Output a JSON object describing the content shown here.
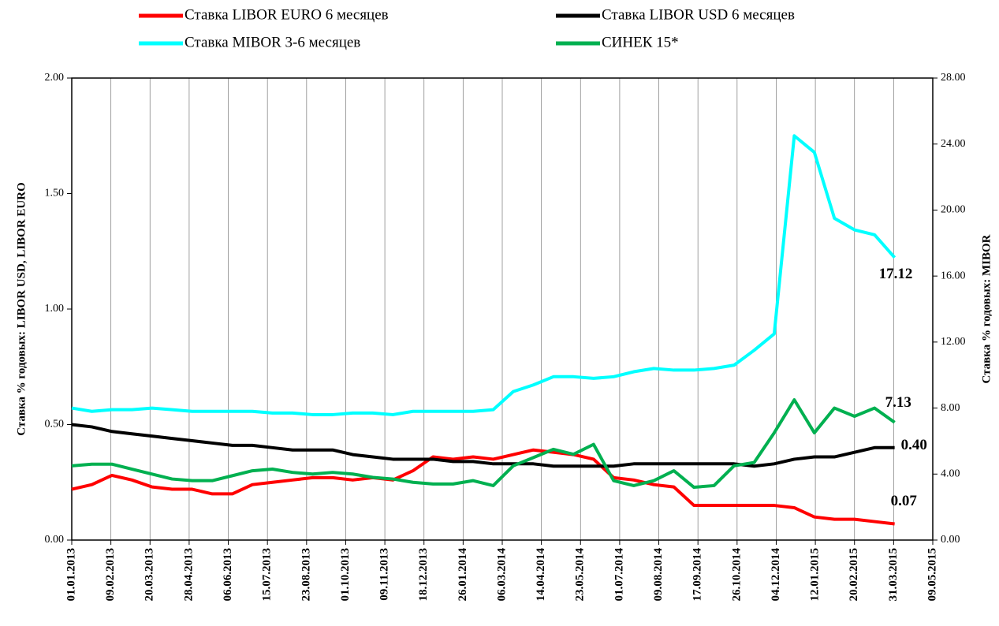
{
  "chart_data": {
    "type": "line",
    "ylabel": "Ставка % годовых: LIBOR USD, LIBOR EURO",
    "y2label": "Ставка % годовых: MIBOR",
    "x": [
      "2013-01-01",
      "2013-01-21",
      "2013-02-10",
      "2013-03-02",
      "2013-03-22",
      "2013-04-11",
      "2013-05-01",
      "2013-05-21",
      "2013-06-10",
      "2013-06-30",
      "2013-07-20",
      "2013-08-09",
      "2013-08-29",
      "2013-09-18",
      "2013-10-08",
      "2013-10-28",
      "2013-11-17",
      "2013-12-07",
      "2013-12-27",
      "2014-01-16",
      "2014-02-05",
      "2014-02-25",
      "2014-03-17",
      "2014-04-06",
      "2014-04-26",
      "2014-05-16",
      "2014-06-05",
      "2014-06-25",
      "2014-07-15",
      "2014-08-04",
      "2014-08-24",
      "2014-09-13",
      "2014-10-03",
      "2014-10-23",
      "2014-11-12",
      "2014-12-02",
      "2014-12-22",
      "2015-01-11",
      "2015-01-31",
      "2015-02-20",
      "2015-03-12",
      "2015-04-01"
    ],
    "xlim": [
      "2013-01-01",
      "2015-05-09"
    ],
    "xticks": [
      {
        "value": "2013-01-01",
        "label": "01.01.2013"
      },
      {
        "value": "2013-02-09",
        "label": "09.02.2013"
      },
      {
        "value": "2013-03-20",
        "label": "20.03.2013"
      },
      {
        "value": "2013-04-28",
        "label": "28.04.2013"
      },
      {
        "value": "2013-06-06",
        "label": "06.06.2013"
      },
      {
        "value": "2013-07-15",
        "label": "15.07.2013"
      },
      {
        "value": "2013-08-23",
        "label": "23.08.2013"
      },
      {
        "value": "2013-10-01",
        "label": "01.10.2013"
      },
      {
        "value": "2013-11-09",
        "label": "09.11.2013"
      },
      {
        "value": "2013-12-18",
        "label": "18.12.2013"
      },
      {
        "value": "2014-01-26",
        "label": "26.01.2014"
      },
      {
        "value": "2014-03-06",
        "label": "06.03.2014"
      },
      {
        "value": "2014-04-14",
        "label": "14.04.2014"
      },
      {
        "value": "2014-05-23",
        "label": "23.05.2014"
      },
      {
        "value": "2014-07-01",
        "label": "01.07.2014"
      },
      {
        "value": "2014-08-09",
        "label": "09.08.2014"
      },
      {
        "value": "2014-09-17",
        "label": "17.09.2014"
      },
      {
        "value": "2014-10-26",
        "label": "26.10.2014"
      },
      {
        "value": "2014-12-04",
        "label": "04.12.2014"
      },
      {
        "value": "2015-01-12",
        "label": "12.01.2015"
      },
      {
        "value": "2015-02-20",
        "label": "20.02.2015"
      },
      {
        "value": "2015-03-31",
        "label": "31.03.2015"
      },
      {
        "value": "2015-05-09",
        "label": "09.05.2015"
      }
    ],
    "ylim": [
      0,
      2
    ],
    "yticks": [
      {
        "value": 0,
        "label": "0.00"
      },
      {
        "value": 0.5,
        "label": "0.50"
      },
      {
        "value": 1,
        "label": "1.00"
      },
      {
        "value": 1.5,
        "label": "1.50"
      },
      {
        "value": 2,
        "label": "2.00"
      }
    ],
    "y2lim": [
      0,
      28
    ],
    "y2ticks": [
      {
        "value": 0,
        "label": "0.00"
      },
      {
        "value": 4,
        "label": "4.00"
      },
      {
        "value": 8,
        "label": "8.00"
      },
      {
        "value": 12,
        "label": "12.00"
      },
      {
        "value": 16,
        "label": "16.00"
      },
      {
        "value": 20,
        "label": "20.00"
      },
      {
        "value": 24,
        "label": "24.00"
      },
      {
        "value": 28,
        "label": "28.00"
      }
    ],
    "grid": "x",
    "series": [
      {
        "name": "Ставка LIBOR EURO 6 месяцев",
        "color": "#ff0000",
        "values": [
          0.22,
          0.24,
          0.28,
          0.26,
          0.23,
          0.22,
          0.22,
          0.2,
          0.2,
          0.24,
          0.25,
          0.26,
          0.27,
          0.27,
          0.26,
          0.27,
          0.26,
          0.3,
          0.36,
          0.35,
          0.36,
          0.35,
          0.37,
          0.39,
          0.38,
          0.37,
          0.35,
          0.27,
          0.26,
          0.24,
          0.23,
          0.15,
          0.15,
          0.15,
          0.15,
          0.15,
          0.14,
          0.1,
          0.09,
          0.09,
          0.08,
          0.07
        ],
        "value_labels": [
          null,
          null,
          null,
          null,
          null,
          null,
          null,
          null,
          null,
          null,
          null,
          null,
          null,
          null,
          null,
          null,
          null,
          null,
          null,
          null,
          null,
          null,
          null,
          null,
          null,
          null,
          null,
          null,
          null,
          null,
          null,
          null,
          null,
          null,
          null,
          null,
          null,
          null,
          null,
          null,
          null,
          "0.07"
        ]
      },
      {
        "name": "Ставка LIBOR USD 6 месяцев",
        "color": "#000000",
        "values": [
          0.5,
          0.49,
          0.47,
          0.46,
          0.45,
          0.44,
          0.43,
          0.42,
          0.41,
          0.41,
          0.4,
          0.39,
          0.39,
          0.39,
          0.37,
          0.36,
          0.35,
          0.35,
          0.35,
          0.34,
          0.34,
          0.33,
          0.33,
          0.33,
          0.32,
          0.32,
          0.32,
          0.32,
          0.33,
          0.33,
          0.33,
          0.33,
          0.33,
          0.33,
          0.32,
          0.33,
          0.35,
          0.36,
          0.36,
          0.38,
          0.4,
          0.4
        ],
        "value_labels": [
          null,
          null,
          null,
          null,
          null,
          null,
          null,
          null,
          null,
          null,
          null,
          null,
          null,
          null,
          null,
          null,
          null,
          null,
          null,
          null,
          null,
          null,
          null,
          null,
          null,
          null,
          null,
          null,
          null,
          null,
          null,
          null,
          null,
          null,
          null,
          null,
          null,
          null,
          null,
          null,
          null,
          "0.40"
        ]
      },
      {
        "name": "Ставка MIBOR 3-6 месяцев",
        "color": "#00ffff",
        "axis": "y2",
        "values": [
          8.0,
          7.8,
          7.9,
          7.9,
          8.0,
          7.9,
          7.8,
          7.8,
          7.8,
          7.8,
          7.7,
          7.7,
          7.6,
          7.6,
          7.7,
          7.7,
          7.6,
          7.8,
          7.8,
          7.8,
          7.8,
          7.9,
          9.0,
          9.4,
          9.9,
          9.9,
          9.8,
          9.9,
          10.2,
          10.4,
          10.3,
          10.3,
          10.4,
          10.6,
          11.5,
          12.5,
          24.5,
          23.5,
          19.5,
          18.8,
          18.5,
          17.12
        ],
        "value_labels": [
          null,
          null,
          null,
          null,
          null,
          null,
          null,
          null,
          null,
          null,
          null,
          null,
          null,
          null,
          null,
          null,
          null,
          null,
          null,
          null,
          null,
          null,
          null,
          null,
          null,
          null,
          null,
          null,
          null,
          null,
          null,
          null,
          null,
          null,
          null,
          null,
          null,
          null,
          null,
          null,
          null,
          "17.12"
        ]
      },
      {
        "name": "СИНЕК 15*",
        "color": "#00b050",
        "axis": "y2",
        "values": [
          4.5,
          4.6,
          4.6,
          4.3,
          4.0,
          3.7,
          3.6,
          3.6,
          3.9,
          4.2,
          4.3,
          4.1,
          4.0,
          4.1,
          4.0,
          3.8,
          3.7,
          3.5,
          3.4,
          3.4,
          3.6,
          3.3,
          4.5,
          5.0,
          5.5,
          5.2,
          5.8,
          3.6,
          3.3,
          3.6,
          4.2,
          3.2,
          3.3,
          4.5,
          4.7,
          6.5,
          8.5,
          6.5,
          8.0,
          7.5,
          8.0,
          7.13
        ],
        "value_labels": [
          null,
          null,
          null,
          null,
          null,
          null,
          null,
          null,
          null,
          null,
          null,
          null,
          null,
          null,
          null,
          null,
          null,
          null,
          null,
          null,
          null,
          null,
          null,
          null,
          null,
          null,
          null,
          null,
          null,
          null,
          null,
          null,
          null,
          null,
          null,
          null,
          null,
          null,
          null,
          null,
          null,
          "7.13"
        ]
      }
    ]
  }
}
